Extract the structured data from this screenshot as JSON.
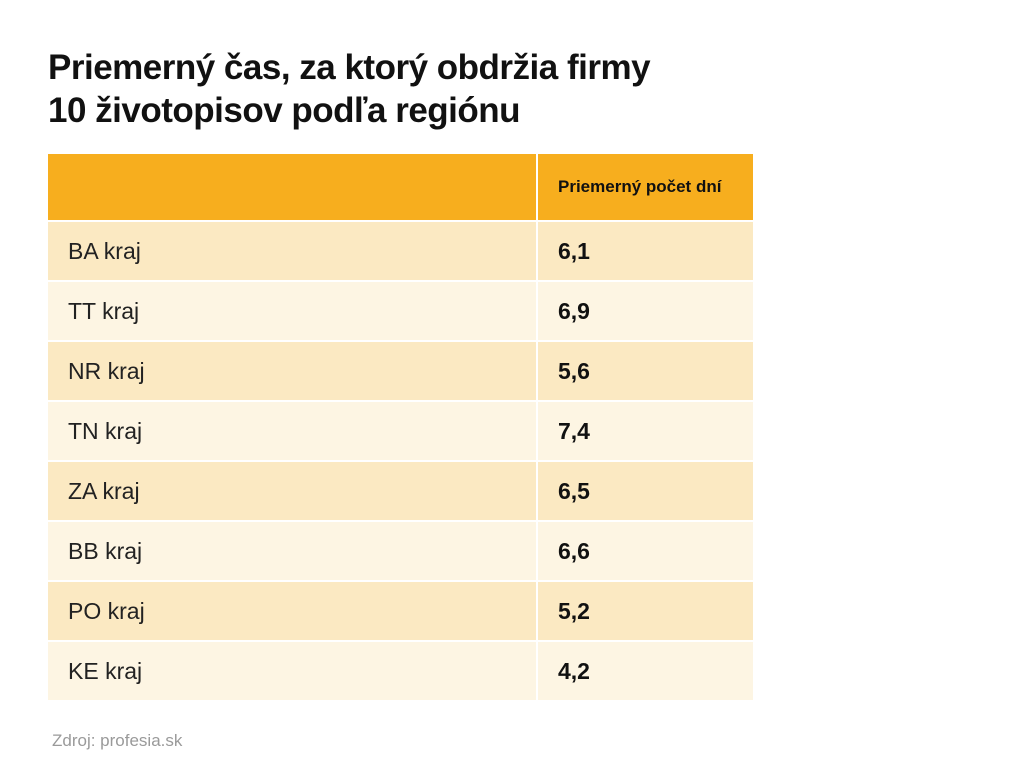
{
  "title": {
    "line1": "Priemerný čas, za ktorý obdržia firmy",
    "line2": "10 životopisov podľa regiónu"
  },
  "table": {
    "header_region": "",
    "header_value": "Priemerný počet dní",
    "rows": [
      {
        "region": "BA kraj",
        "value": "6,1"
      },
      {
        "region": "TT kraj",
        "value": "6,9"
      },
      {
        "region": "NR kraj",
        "value": "5,6"
      },
      {
        "region": "TN kraj",
        "value": "7,4"
      },
      {
        "region": "ZA kraj",
        "value": "6,5"
      },
      {
        "region": "BB kraj",
        "value": "6,6"
      },
      {
        "region": "PO kraj",
        "value": "5,2"
      },
      {
        "region": "KE kraj",
        "value": "4,2"
      }
    ]
  },
  "source": "Zdroj: profesia.sk",
  "colors": {
    "header": "#f7ae1e",
    "row_odd": "#fbe9c2",
    "row_even": "#fdf5e3"
  },
  "chart_data": {
    "type": "table",
    "title": "Priemerný čas, za ktorý obdržia firmy 10 životopisov podľa regiónu",
    "columns": [
      "",
      "Priemerný počet dní"
    ],
    "categories": [
      "BA kraj",
      "TT kraj",
      "NR kraj",
      "TN kraj",
      "ZA kraj",
      "BB kraj",
      "PO kraj",
      "KE kraj"
    ],
    "values": [
      6.1,
      6.9,
      5.6,
      7.4,
      6.5,
      6.6,
      5.2,
      4.2
    ]
  }
}
